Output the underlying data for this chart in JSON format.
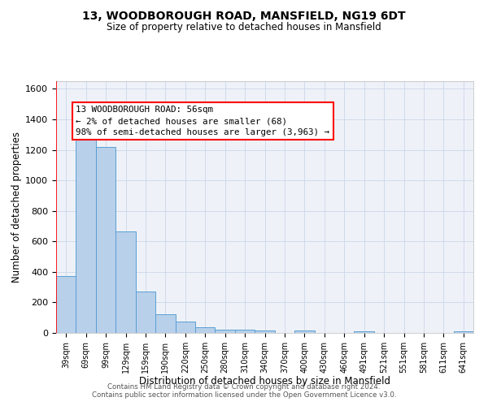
{
  "title_line1": "13, WOODBOROUGH ROAD, MANSFIELD, NG19 6DT",
  "title_line2": "Size of property relative to detached houses in Mansfield",
  "xlabel": "Distribution of detached houses by size in Mansfield",
  "ylabel": "Number of detached properties",
  "bar_labels": [
    "39sqm",
    "69sqm",
    "99sqm",
    "129sqm",
    "159sqm",
    "190sqm",
    "220sqm",
    "250sqm",
    "280sqm",
    "310sqm",
    "340sqm",
    "370sqm",
    "400sqm",
    "430sqm",
    "460sqm",
    "491sqm",
    "521sqm",
    "551sqm",
    "581sqm",
    "611sqm",
    "641sqm"
  ],
  "bar_values": [
    375,
    1270,
    1220,
    665,
    270,
    120,
    75,
    38,
    20,
    20,
    15,
    0,
    15,
    0,
    0,
    12,
    0,
    0,
    0,
    0,
    12
  ],
  "bar_color": "#b8d0ea",
  "bar_edge_color": "#5a9fd4",
  "ylim": [
    0,
    1650
  ],
  "yticks": [
    0,
    200,
    400,
    600,
    800,
    1000,
    1200,
    1400,
    1600
  ],
  "annotation_line1": "13 WOODBOROUGH ROAD: 56sqm",
  "annotation_line2": "← 2% of detached houses are smaller (68)",
  "annotation_line3": "98% of semi-detached houses are larger (3,963) →",
  "bg_color": "#eef2f8",
  "grid_color": "#ccd6e8",
  "footer_line1": "Contains HM Land Registry data © Crown copyright and database right 2024.",
  "footer_line2": "Contains public sector information licensed under the Open Government Licence v3.0."
}
